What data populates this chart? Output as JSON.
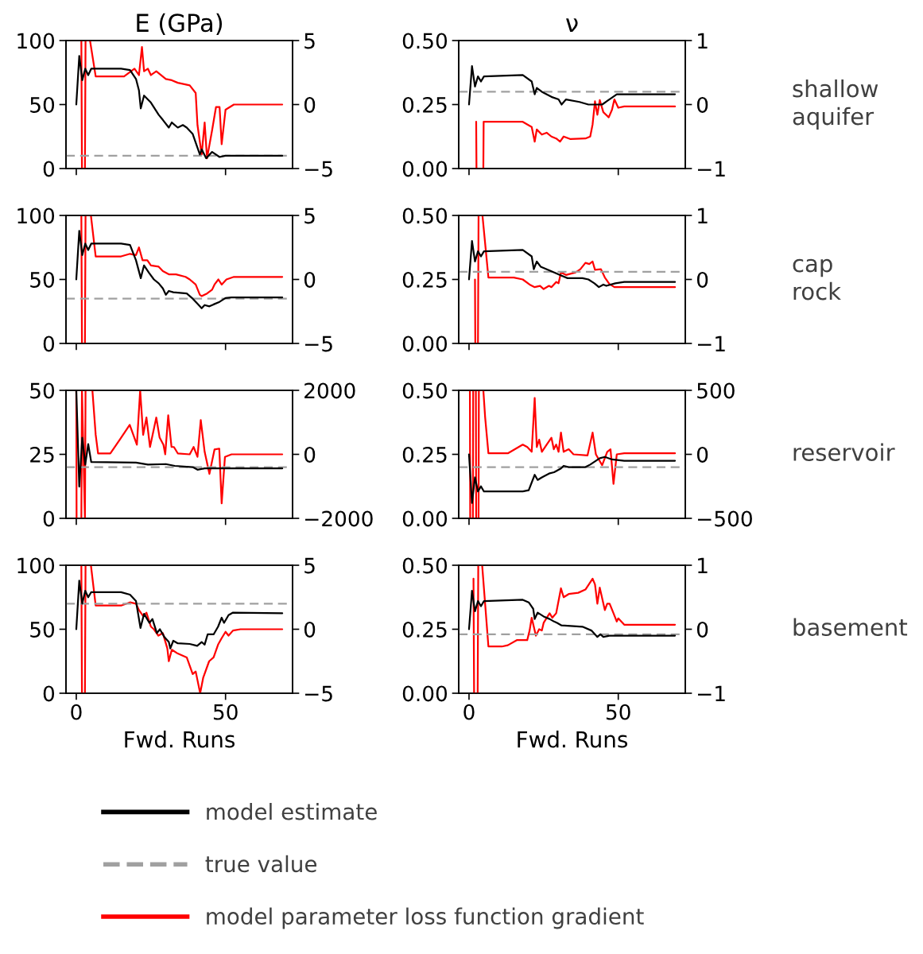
{
  "chart_data": [
    {
      "type": "line",
      "title": "E (GPa)",
      "legend": "bottom",
      "tick_labels": "y",
      "xlim": [
        -3.45,
        72.45
      ],
      "xticks": [
        0,
        50
      ],
      "ylim": [
        0,
        100
      ],
      "yticks": [
        0,
        50,
        100
      ],
      "y2lim": [
        -5,
        5
      ],
      "y2ticks": [
        {
          "value": -5,
          "label": "−5"
        },
        0,
        5
      ],
      "series": [
        {
          "name": "model estimate",
          "color": "#000000",
          "x": [
            0,
            1,
            2,
            3,
            4,
            5,
            15,
            18,
            20,
            21,
            21.6,
            22.7,
            25,
            27.6,
            29,
            31,
            32,
            34,
            35.7,
            37,
            39,
            41.4,
            42,
            43.5,
            45.5,
            48,
            50,
            69
          ],
          "values": [
            50,
            88,
            69,
            78,
            73,
            78,
            78,
            77,
            70,
            61,
            47,
            57,
            51.5,
            42,
            38,
            32,
            36,
            32,
            34,
            32,
            27,
            11,
            15,
            8,
            13,
            9,
            10,
            10
          ]
        },
        {
          "name": "model parameter loss function gradient",
          "color": "#ff0000",
          "axis": "y2",
          "x": [
            1.7,
            1.9,
            2.9,
            3.1,
            4.6,
            6.5,
            16,
            19.5,
            21,
            22,
            22.7,
            24,
            25,
            26.8,
            30,
            32,
            34,
            38,
            40,
            40.6,
            42,
            43,
            43.8,
            45.5,
            46.8,
            48,
            48.7,
            50,
            52.8,
            69
          ],
          "values": [
            5,
            -5,
            -5,
            5,
            5,
            2.2,
            2.2,
            2.8,
            2.3,
            4.5,
            2.6,
            2.8,
            2.3,
            2.6,
            2.0,
            1.9,
            1.7,
            1.5,
            0.9,
            -1.6,
            -3.9,
            -1.4,
            -4.2,
            -2.0,
            -0.2,
            -0.2,
            -3.1,
            -0.4,
            0,
            0
          ]
        }
      ],
      "ref_lines": [
        {
          "axis": "y",
          "value": 10,
          "label": "true value",
          "color": "#a0a0a0",
          "line_style": "dashed"
        }
      ]
    },
    {
      "type": "line",
      "title": "ν",
      "y2label": "shallow aquifer",
      "tick_labels": "y",
      "xlim": [
        -3.45,
        72.45
      ],
      "xticks": [
        0,
        50
      ],
      "ylim": [
        0,
        0.5
      ],
      "yticks": [
        {
          "value": 0,
          "label": "0.00"
        },
        {
          "value": 0.25,
          "label": "0.25"
        },
        {
          "value": 0.5,
          "label": "0.50"
        }
      ],
      "y2lim": [
        -1,
        1
      ],
      "y2ticks": [
        {
          "value": -1,
          "label": "−1"
        },
        0,
        1
      ],
      "series": [
        {
          "color": "#000000",
          "x": [
            0,
            1,
            2,
            3,
            4,
            5,
            18,
            21,
            22,
            22.7,
            24.4,
            27.6,
            30,
            31,
            32.5,
            37,
            40,
            44.6,
            47,
            49.5,
            52,
            69
          ],
          "values": [
            0.25,
            0.4,
            0.32,
            0.36,
            0.34,
            0.36,
            0.365,
            0.34,
            0.29,
            0.315,
            0.3,
            0.28,
            0.27,
            0.25,
            0.27,
            0.26,
            0.25,
            0.25,
            0.27,
            0.29,
            0.29,
            0.29
          ]
        },
        {
          "color": "#ff0000",
          "axis": "y2",
          "x": [
            2.4,
            2.5,
            4.8,
            4.9,
            18,
            21,
            22,
            22.7,
            24.4,
            26,
            27.6,
            29.2,
            30.5,
            31.7,
            34,
            39,
            40.6,
            41.4,
            42.2,
            43,
            43.8,
            45,
            46.8,
            47.9,
            48.7,
            50,
            52,
            69
          ],
          "values": [
            -0.27,
            -1,
            -1,
            -0.27,
            -0.27,
            -0.35,
            -0.58,
            -0.39,
            -0.47,
            -0.44,
            -0.5,
            -0.53,
            -0.58,
            -0.5,
            -0.54,
            -0.53,
            -0.5,
            -0.31,
            0.05,
            -0.16,
            0.07,
            -0.12,
            -0.2,
            -0.08,
            0.08,
            -0.05,
            -0.03,
            -0.03
          ]
        }
      ],
      "ref_lines": [
        {
          "axis": "y",
          "value": 0.3,
          "color": "#a0a0a0",
          "line_style": "dashed"
        }
      ]
    },
    {
      "type": "line",
      "tick_labels": "y",
      "xlim": [
        -3.45,
        72.45
      ],
      "xticks": [
        0,
        50
      ],
      "ylim": [
        0,
        100
      ],
      "yticks": [
        0,
        50,
        100
      ],
      "y2lim": [
        -5,
        5
      ],
      "y2ticks": [
        {
          "value": -5,
          "label": "−5"
        },
        0,
        5
      ],
      "series": [
        {
          "color": "#000000",
          "x": [
            0,
            1,
            2,
            3,
            4,
            5,
            15,
            18,
            20,
            21.6,
            22.7,
            24.4,
            26,
            27.6,
            29,
            30,
            31,
            32.5,
            37,
            39,
            40.6,
            42,
            43,
            44.6,
            46,
            48,
            50,
            52,
            69
          ],
          "values": [
            50,
            88,
            69,
            78,
            73,
            78,
            78,
            77,
            65,
            51,
            61,
            55,
            50,
            47,
            43,
            38,
            41,
            40,
            39,
            35,
            31,
            27.5,
            30,
            29,
            30.5,
            32.5,
            35.5,
            36,
            36
          ]
        },
        {
          "color": "#ff0000",
          "axis": "y2",
          "x": [
            1.7,
            1.9,
            2.9,
            3.1,
            4.9,
            6.5,
            15,
            18,
            20,
            21,
            22.2,
            23.8,
            25,
            27.6,
            29,
            31,
            33.4,
            36.6,
            38,
            40,
            41.4,
            42,
            43.8,
            45.5,
            46.3,
            47.6,
            48.7,
            50.3,
            52.8,
            69
          ],
          "values": [
            5,
            -5,
            -5,
            5,
            5,
            1.8,
            1.8,
            2.0,
            1.9,
            2.5,
            1.5,
            1.5,
            1.1,
            1.0,
            0.65,
            0.4,
            0.4,
            0.2,
            0,
            -0.4,
            -1.2,
            -1.3,
            -1.1,
            -0.8,
            -0.4,
            0,
            -0.4,
            0,
            0.2,
            0.2
          ]
        }
      ],
      "ref_lines": [
        {
          "axis": "y",
          "value": 35,
          "color": "#a0a0a0",
          "line_style": "dashed"
        }
      ]
    },
    {
      "type": "line",
      "y2label": "cap rock",
      "tick_labels": "y",
      "xlim": [
        -3.45,
        72.45
      ],
      "xticks": [
        0,
        50
      ],
      "ylim": [
        0,
        0.5
      ],
      "yticks": [
        {
          "value": 0,
          "label": "0.00"
        },
        {
          "value": 0.25,
          "label": "0.25"
        },
        {
          "value": 0.5,
          "label": "0.50"
        }
      ],
      "y2lim": [
        -1,
        1
      ],
      "y2ticks": [
        {
          "value": -1,
          "label": "−1"
        },
        0,
        1
      ],
      "series": [
        {
          "color": "#000000",
          "x": [
            0,
            1,
            2,
            3,
            4,
            5,
            18,
            21,
            21.7,
            22.7,
            24,
            27,
            29,
            31,
            33,
            38,
            40,
            42,
            43.5,
            45,
            46,
            49,
            52,
            69
          ],
          "values": [
            0.25,
            0.4,
            0.32,
            0.36,
            0.34,
            0.36,
            0.365,
            0.34,
            0.29,
            0.32,
            0.3,
            0.285,
            0.275,
            0.265,
            0.255,
            0.255,
            0.25,
            0.235,
            0.22,
            0.23,
            0.225,
            0.235,
            0.24,
            0.24
          ]
        },
        {
          "color": "#ff0000",
          "axis": "y2",
          "x": [
            2,
            2.1,
            3,
            3.2,
            4.5,
            6.5,
            15,
            18,
            20.3,
            22,
            23.8,
            25,
            26.8,
            27.6,
            29.2,
            30,
            30.8,
            32.5,
            35.7,
            37.3,
            39,
            40.3,
            41.4,
            42.2,
            44.2,
            45.5,
            47,
            48.7,
            69
          ],
          "values": [
            0,
            -1,
            -1,
            1,
            1,
            0.03,
            0.03,
            0,
            -0.08,
            -0.12,
            -0.1,
            -0.15,
            -0.1,
            -0.12,
            -0.04,
            -0.06,
            0.11,
            0.07,
            0.11,
            0.16,
            0.26,
            0.24,
            0.28,
            0.15,
            0.16,
            0.03,
            -0.07,
            -0.12,
            -0.12
          ]
        }
      ],
      "ref_lines": [
        {
          "axis": "y",
          "value": 0.28,
          "color": "#a0a0a0",
          "line_style": "dashed"
        }
      ]
    },
    {
      "type": "line",
      "tick_labels": "y",
      "xlim": [
        -3.45,
        72.45
      ],
      "xticks": [
        0,
        50
      ],
      "ylim": [
        0,
        50
      ],
      "yticks": [
        0,
        25,
        50
      ],
      "y2lim": [
        -2000,
        2000
      ],
      "y2ticks": [
        {
          "value": -2000,
          "label": "−2000"
        },
        0,
        2000
      ],
      "series": [
        {
          "color": "#000000",
          "x": [
            0,
            1,
            2,
            3,
            4,
            5,
            20,
            24,
            30,
            33,
            39,
            40.6,
            43,
            69
          ],
          "values": [
            50,
            12.4,
            31.5,
            21,
            29,
            22,
            21.8,
            21,
            21.2,
            20.5,
            20,
            19,
            19.5,
            19.5
          ]
        },
        {
          "color": "#ff0000",
          "axis": "y2",
          "x": [
            0,
            0.1,
            1.7,
            1.9,
            2.9,
            3.1,
            5.4,
            6.5,
            7.3,
            11.4,
            14.6,
            17.9,
            20.3,
            21.4,
            22.4,
            23.5,
            24.7,
            26.8,
            27.9,
            29.2,
            29.8,
            30.8,
            31.9,
            32.7,
            34,
            38,
            39.3,
            40.6,
            41.7,
            43,
            44.6,
            46.3,
            47.9,
            48.7,
            49.8,
            52,
            69
          ],
          "values": [
            2000,
            -2000,
            -2000,
            2000,
            -2000,
            2000,
            2000,
            610,
            30,
            30,
            460,
            920,
            300,
            2000,
            610,
            1150,
            230,
            1150,
            530,
            300,
            0,
            1220,
            230,
            230,
            30,
            0,
            230,
            -80,
            1070,
            80,
            -610,
            150,
            180,
            -1530,
            -80,
            0,
            0
          ]
        }
      ],
      "ref_lines": [
        {
          "axis": "y",
          "value": 20,
          "color": "#a0a0a0",
          "line_style": "dashed"
        }
      ]
    },
    {
      "type": "line",
      "y2label": "reservoir",
      "tick_labels": "y",
      "xlim": [
        -3.45,
        72.45
      ],
      "xticks": [
        0,
        50
      ],
      "ylim": [
        0,
        0.5
      ],
      "yticks": [
        {
          "value": 0,
          "label": "0.00"
        },
        {
          "value": 0.25,
          "label": "0.25"
        },
        {
          "value": 0.5,
          "label": "0.50"
        }
      ],
      "y2lim": [
        -500,
        500
      ],
      "y2ticks": [
        {
          "value": -500,
          "label": "−500"
        },
        0,
        500
      ],
      "series": [
        {
          "color": "#000000",
          "x": [
            0,
            1,
            2,
            3,
            4,
            5,
            18,
            20,
            22,
            23,
            24.4,
            26.8,
            28.5,
            30.8,
            31.7,
            33.4,
            39,
            40.6,
            43.8,
            45.5,
            47.9,
            52,
            69
          ],
          "values": [
            0.25,
            0.06,
            0.16,
            0.105,
            0.125,
            0.105,
            0.105,
            0.11,
            0.17,
            0.15,
            0.16,
            0.175,
            0.18,
            0.195,
            0.205,
            0.2,
            0.2,
            0.21,
            0.235,
            0.24,
            0.23,
            0.225,
            0.225
          ]
        },
        {
          "color": "#ff0000",
          "axis": "y2",
          "x": [
            0.3,
            0.4,
            1.3,
            1.4,
            2.3,
            2.4,
            3.2,
            3.3,
            4.8,
            5.4,
            6.5,
            13,
            18,
            19.5,
            21,
            22,
            22.7,
            23.5,
            24.4,
            26,
            27.6,
            28.4,
            29.2,
            30,
            30.8,
            31.7,
            33.4,
            35,
            39.7,
            41.4,
            42.5,
            44.6,
            46.3,
            47.4,
            48.4,
            49.5,
            52,
            69
          ],
          "values": [
            500,
            -500,
            -500,
            500,
            500,
            -500,
            -500,
            500,
            500,
            290,
            8,
            8,
            76,
            57,
            20,
            440,
            57,
            115,
            20,
            76,
            130,
            40,
            76,
            20,
            170,
            20,
            40,
            0,
            -8,
            170,
            0,
            -85,
            20,
            40,
            -230,
            0,
            8,
            8
          ]
        }
      ],
      "ref_lines": [
        {
          "axis": "y",
          "value": 0.2,
          "color": "#a0a0a0",
          "line_style": "dashed"
        }
      ]
    },
    {
      "type": "line",
      "xlabel": "Fwd. Runs",
      "xlim": [
        -3.45,
        72.45
      ],
      "xticks": [
        0,
        50
      ],
      "ylim": [
        0,
        100
      ],
      "yticks": [
        0,
        50,
        100
      ],
      "y2lim": [
        -5,
        5
      ],
      "y2ticks": [
        {
          "value": -5,
          "label": "−5"
        },
        0,
        5
      ],
      "series": [
        {
          "color": "#000000",
          "x": [
            0,
            1,
            2,
            3,
            4,
            5,
            15,
            18,
            20,
            21.5,
            22.7,
            24.5,
            25.5,
            27,
            28,
            29.5,
            31,
            31.5,
            32.5,
            34,
            38,
            40.5,
            42,
            43,
            44,
            46,
            47.5,
            48.7,
            49.5,
            51,
            52.5,
            69
          ],
          "values": [
            50,
            88,
            70,
            80,
            75,
            79,
            79,
            77,
            72,
            51,
            62,
            55,
            58,
            47,
            50,
            44,
            40,
            35,
            41,
            39,
            38.5,
            37,
            40,
            38,
            46,
            46,
            52,
            59,
            55,
            61,
            63,
            62.5
          ]
        },
        {
          "color": "#ff0000",
          "axis": "y2",
          "x": [
            1.7,
            1.9,
            2.9,
            3.1,
            4.9,
            6.5,
            15,
            18,
            20,
            21,
            22.5,
            23.5,
            25,
            26,
            27.5,
            29,
            30.5,
            31,
            32,
            34,
            37,
            39,
            40,
            41.5,
            42.5,
            44.5,
            46,
            47.5,
            48.7,
            50,
            51,
            52.5,
            55,
            69
          ],
          "values": [
            5,
            -5,
            -5,
            5,
            5,
            1.85,
            1.85,
            2.1,
            2.0,
            1.5,
            1.0,
            1.3,
            0.2,
            0,
            -0.5,
            -0.3,
            -1.5,
            -2.5,
            -1.6,
            -1.9,
            -2.2,
            -3.5,
            -3.3,
            -5,
            -3.8,
            -2.5,
            -2.2,
            -1.2,
            -0.7,
            -0.2,
            -0.5,
            -0.1,
            0,
            0
          ]
        }
      ],
      "ref_lines": [
        {
          "axis": "y",
          "value": 70,
          "color": "#a0a0a0",
          "line_style": "dashed"
        }
      ]
    },
    {
      "type": "line",
      "xlabel": "Fwd. Runs",
      "y2label": "basement",
      "xlim": [
        -3.45,
        72.45
      ],
      "xticks": [
        0,
        50
      ],
      "ylim": [
        0,
        0.5
      ],
      "yticks": [
        {
          "value": 0,
          "label": "0.00"
        },
        {
          "value": 0.25,
          "label": "0.25"
        },
        {
          "value": 0.5,
          "label": "0.50"
        }
      ],
      "y2lim": [
        -1,
        1
      ],
      "y2ticks": [
        {
          "value": -1,
          "label": "−1"
        },
        0,
        1
      ],
      "series": [
        {
          "color": "#000000",
          "x": [
            0,
            1,
            2,
            3,
            4,
            5,
            18,
            20,
            21.5,
            22,
            23,
            25,
            27,
            28.5,
            29.5,
            31,
            38,
            41,
            43,
            44,
            45,
            47,
            69
          ],
          "values": [
            0.25,
            0.4,
            0.32,
            0.36,
            0.34,
            0.36,
            0.365,
            0.355,
            0.33,
            0.29,
            0.315,
            0.3,
            0.29,
            0.28,
            0.275,
            0.265,
            0.26,
            0.245,
            0.22,
            0.23,
            0.22,
            0.225,
            0.225
          ]
        },
        {
          "color": "#ff0000",
          "axis": "y2",
          "x": [
            1.5,
            1.7,
            2.9,
            3.1,
            4.4,
            6.5,
            11,
            13,
            16,
            19.5,
            20.3,
            21,
            22.4,
            23.5,
            24.4,
            25,
            27,
            27.9,
            29.2,
            30.8,
            31.7,
            33.4,
            36.6,
            39,
            41.4,
            42.2,
            43,
            43.8,
            45.5,
            46.3,
            47.1,
            48.4,
            49.5,
            50,
            52,
            69
          ],
          "values": [
            0.79,
            -1,
            -1,
            1,
            1,
            -0.27,
            -0.27,
            -0.25,
            -0.17,
            -0.17,
            -0.02,
            0.18,
            -0.1,
            0,
            -0.02,
            0.1,
            0.25,
            0.18,
            0.25,
            0.64,
            0.5,
            0.55,
            0.57,
            0.62,
            0.79,
            0.7,
            0.4,
            0.65,
            0.3,
            0.4,
            0.4,
            0.25,
            0.12,
            0.17,
            0.07,
            0.07
          ]
        }
      ],
      "ref_lines": [
        {
          "axis": "y",
          "value": 0.23,
          "color": "#a0a0a0",
          "line_style": "dashed"
        }
      ]
    }
  ]
}
